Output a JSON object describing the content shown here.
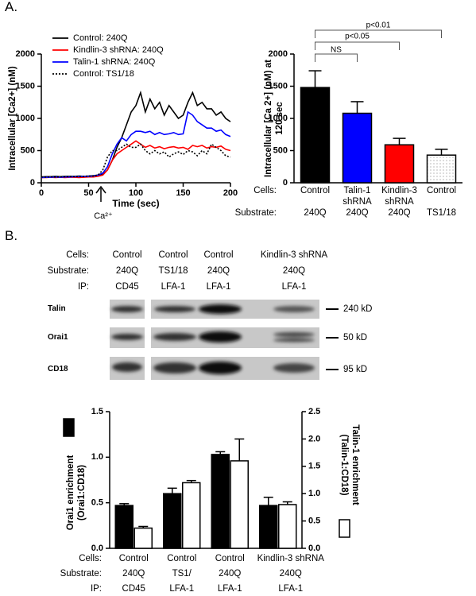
{
  "panels": [
    "A.",
    "B."
  ],
  "chart_data": [
    {
      "type": "line",
      "ylabel": "Intracellular [Ca2+] (nM)",
      "xlabel": "Time (sec)",
      "x": [
        0,
        5,
        10,
        15,
        20,
        25,
        30,
        35,
        40,
        45,
        50,
        55,
        60,
        65,
        70,
        75,
        80,
        85,
        90,
        95,
        100,
        105,
        110,
        115,
        120,
        125,
        130,
        135,
        140,
        145,
        150,
        155,
        160,
        165,
        170,
        175,
        180,
        185,
        190,
        195,
        200
      ],
      "xlim": [
        0,
        200
      ],
      "xticks": [
        0,
        50,
        100,
        150,
        200
      ],
      "ylim": [
        0,
        2000
      ],
      "yticks": [
        0,
        500,
        1000,
        1500,
        2000
      ],
      "series": [
        {
          "name": "Control: 240Q",
          "color": "#000000",
          "line_style": "solid",
          "values": [
            90,
            95,
            95,
            100,
            95,
            100,
            100,
            100,
            105,
            100,
            105,
            110,
            120,
            130,
            200,
            350,
            550,
            700,
            900,
            1100,
            1200,
            1400,
            1100,
            1300,
            1150,
            1250,
            1050,
            1200,
            1100,
            1000,
            1050,
            1250,
            1400,
            1200,
            1250,
            1150,
            1150,
            1050,
            1100,
            1000,
            950
          ]
        },
        {
          "name": "Kindlin-3 shRNA: 240Q",
          "color": "#ff0000",
          "line_style": "solid",
          "values": [
            80,
            80,
            85,
            80,
            85,
            80,
            85,
            85,
            80,
            85,
            90,
            90,
            100,
            120,
            200,
            350,
            450,
            500,
            550,
            600,
            650,
            600,
            550,
            580,
            540,
            560,
            530,
            550,
            560,
            540,
            550,
            520,
            580,
            560,
            580,
            540,
            560,
            550,
            570,
            520,
            500
          ]
        },
        {
          "name": "Talin-1 shRNA: 240Q",
          "color": "#0000ff",
          "line_style": "solid",
          "values": [
            80,
            85,
            85,
            90,
            85,
            90,
            90,
            95,
            95,
            100,
            100,
            105,
            120,
            150,
            250,
            450,
            600,
            700,
            650,
            750,
            800,
            800,
            780,
            800,
            750,
            780,
            750,
            760,
            780,
            750,
            760,
            1100,
            1050,
            950,
            900,
            850,
            850,
            800,
            820,
            750,
            720
          ]
        },
        {
          "name": "Control: TS1/18",
          "color": "#000000",
          "line_style": "dotted",
          "values": [
            90,
            90,
            95,
            90,
            95,
            95,
            100,
            95,
            100,
            100,
            105,
            105,
            120,
            200,
            400,
            500,
            500,
            550,
            600,
            550,
            550,
            600,
            500,
            450,
            500,
            450,
            480,
            400,
            450,
            480,
            440,
            500,
            480,
            420,
            500,
            450,
            600,
            550,
            500,
            420,
            400
          ]
        }
      ],
      "annotations": [
        {
          "text": "Ca²⁺"
        }
      ]
    },
    {
      "type": "bar",
      "ylabel": "Intracellular [Ca 2+] (nM) at 120 sec",
      "row_labels": [
        "Cells:",
        "Substrate:"
      ],
      "categories": [
        "Control",
        "Talin-1 shRNA",
        "Kindlin-3 shRNA",
        "Control"
      ],
      "substrates": [
        "240Q",
        "240Q",
        "240Q",
        "TS1/18"
      ],
      "values": [
        1480,
        1080,
        590,
        430
      ],
      "errors": [
        260,
        180,
        100,
        90
      ],
      "colors": [
        "#000000",
        "#0000ff",
        "#ff0000",
        "#ffffff"
      ],
      "ylim": [
        0,
        2000
      ],
      "yticks": [
        0,
        500,
        1000,
        1500,
        2000
      ],
      "annotations": [
        {
          "text": "NS"
        },
        {
          "text": "p<0.05"
        },
        {
          "text": "p<0.01"
        }
      ]
    },
    {
      "type": "grouped_bar",
      "ylabel": "Orai1 enrichment (Orai1:CD18)",
      "y2label": "Talin-1 enrichment (Talin-1:CD18)",
      "ylim": [
        0,
        1.5
      ],
      "yticks": [
        {
          "value": 0,
          "label": "0.0"
        },
        {
          "value": 0.5,
          "label": "0.5"
        },
        {
          "value": 1,
          "label": "1.0"
        },
        {
          "value": 1.5,
          "label": "1.5"
        }
      ],
      "y2lim": [
        0,
        2.5
      ],
      "y2ticks": [
        {
          "value": 0,
          "label": "0.0"
        },
        {
          "value": 0.5,
          "label": "0.5"
        },
        {
          "value": 1,
          "label": "1.0"
        },
        {
          "value": 1.5,
          "label": "1.5"
        },
        {
          "value": 2,
          "label": "2.0"
        },
        {
          "value": 2.5,
          "label": "2.5"
        }
      ],
      "series": [
        {
          "color": "#000000",
          "values": [
            0.47,
            0.6,
            1.03,
            0.47
          ],
          "errors": [
            0.02,
            0.06,
            0.03,
            0.09
          ]
        },
        {
          "color": "#ffffff",
          "axis": "y2",
          "values": [
            0.37,
            1.2,
            1.6,
            0.8
          ],
          "errors": [
            0.03,
            0.04,
            0.4,
            0.05
          ]
        }
      ],
      "row_labels": [
        "Cells:",
        "Substrate:",
        "IP:"
      ],
      "categories": [
        "Control",
        "Control",
        "Control",
        "Kindlin-3 shRNA"
      ],
      "substrates": [
        "240Q",
        "TS1/",
        "240Q",
        "240Q"
      ],
      "ip": [
        "CD45",
        "LFA-1",
        "LFA-1",
        "LFA-1"
      ]
    }
  ],
  "blot": {
    "row_labels": [
      "Cells:",
      "Substrate:",
      "IP:"
    ],
    "cells": [
      "Control",
      "Control",
      "Control",
      "Kindlin-3 shRNA"
    ],
    "substrates": [
      "240Q",
      "TS1/18",
      "240Q",
      "240Q"
    ],
    "ip": [
      "CD45",
      "LFA-1",
      "LFA-1",
      "LFA-1"
    ],
    "bands": [
      {
        "label": "Talin",
        "size": "240 kD"
      },
      {
        "label": "Orai1",
        "size": "50 kD"
      },
      {
        "label": "CD18",
        "size": "95 kD"
      }
    ]
  }
}
